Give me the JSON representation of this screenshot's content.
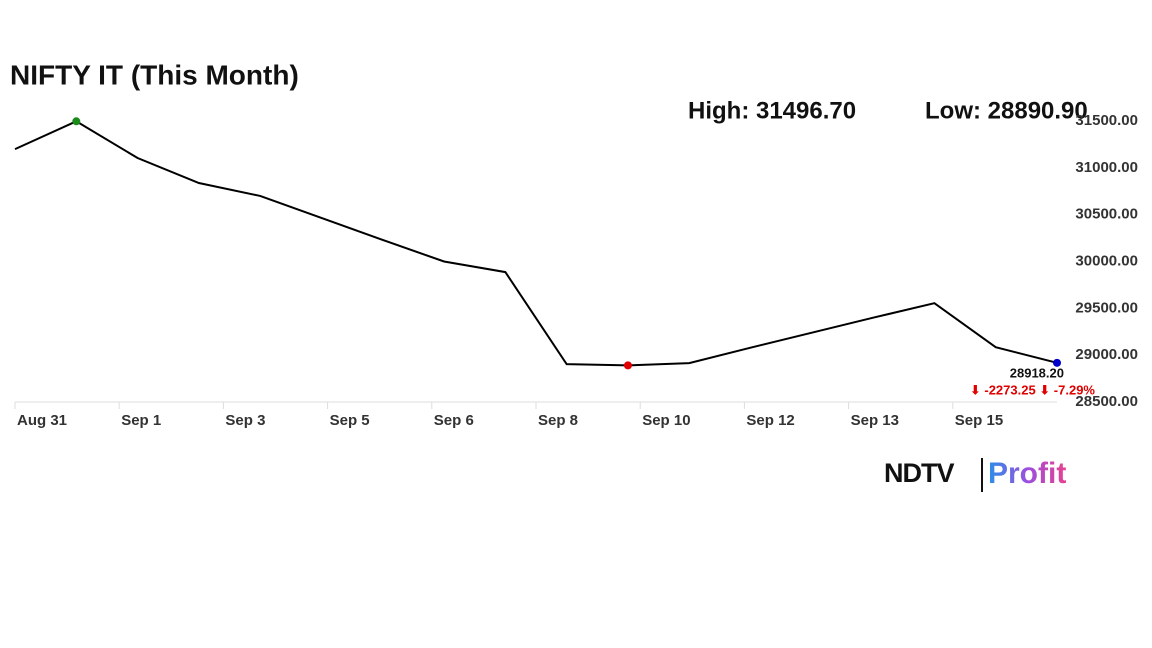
{
  "chart_data": {
    "type": "line",
    "title": "NIFTY IT (This Month)",
    "high_text": "High: 31496.70",
    "low_text": "Low: 28890.90",
    "x_labels": [
      "Aug 31",
      "Sep 1",
      "Sep 3",
      "Sep 5",
      "Sep 6",
      "Sep 8",
      "Sep 10",
      "Sep 12",
      "Sep 13",
      "Sep 15"
    ],
    "values": [
      31200,
      31496.7,
      31105,
      30838,
      30700,
      30465,
      30230,
      30000,
      29887,
      28904,
      28890.9,
      28915,
      29080,
      29240,
      29400,
      29555,
      29085,
      28918.2
    ],
    "color": "#000000",
    "high_index": 1,
    "high_color": "#1a8a1a",
    "low_index": 10,
    "low_color": "#e00000",
    "last_color": "#0000cc",
    "last_label": "28918.20",
    "change_text": "⬇ -2273.25 ⬇ -7.29%",
    "ylim": [
      28500,
      31500
    ],
    "yticks": [
      {
        "value": 28500,
        "label": "28500.00"
      },
      {
        "value": 29000,
        "label": "29000.00"
      },
      {
        "value": 29500,
        "label": "29500.00"
      },
      {
        "value": 30000,
        "label": "30000.00"
      },
      {
        "value": 30500,
        "label": "30500.00"
      },
      {
        "value": 31000,
        "label": "31000.00"
      },
      {
        "value": 31500,
        "label": "31500.00"
      }
    ],
    "logo": {
      "left": "NDTV",
      "right": "Profit"
    }
  }
}
